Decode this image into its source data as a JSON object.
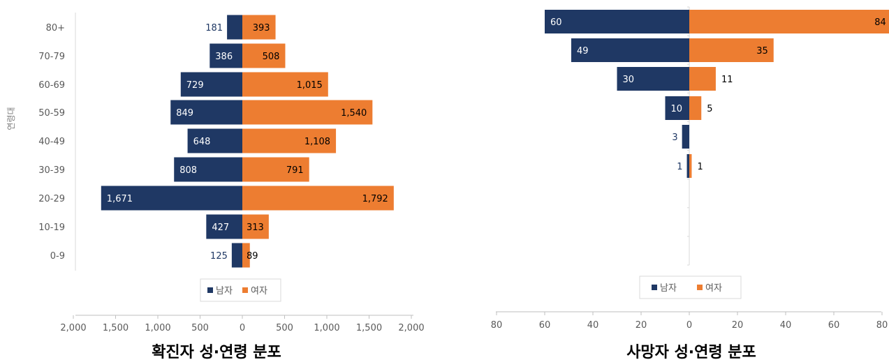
{
  "colors": {
    "male": "#1f3864",
    "female": "#ed7d31",
    "axis": "#bfbfbf",
    "tick_text": "#595959",
    "label_dark": "#1f3864"
  },
  "chart_data": [
    {
      "type": "bar",
      "orientation": "horizontal-diverging",
      "title": "확진자 성·연령 분포",
      "ylabel": "연령대",
      "categories": [
        "0-9",
        "10-19",
        "20-29",
        "30-39",
        "40-49",
        "50-59",
        "60-69",
        "70-79",
        "80+"
      ],
      "series": [
        {
          "name": "남자",
          "values": [
            125,
            427,
            1671,
            808,
            648,
            849,
            729,
            386,
            181
          ],
          "labels": [
            "125",
            "427",
            "1,671",
            "808",
            "648",
            "849",
            "729",
            "386",
            "181"
          ]
        },
        {
          "name": "여자",
          "values": [
            89,
            313,
            1792,
            791,
            1108,
            1540,
            1015,
            508,
            393
          ],
          "labels": [
            "89",
            "313",
            "1,792",
            "791",
            "1,108",
            "1,540",
            "1,015",
            "508",
            "393"
          ]
        }
      ],
      "xlim": [
        -2000,
        2000
      ],
      "xticks": [
        -2000,
        -1500,
        -1000,
        -500,
        0,
        500,
        1000,
        1500,
        2000
      ],
      "xtick_labels": [
        "2,000",
        "1,500",
        "1,000",
        "500",
        "0",
        "500",
        "1,000",
        "1,500",
        "2,000"
      ],
      "legend": {
        "items": [
          "남자",
          "여자"
        ],
        "position": "bottom"
      },
      "grid": false
    },
    {
      "type": "bar",
      "orientation": "horizontal-diverging",
      "title": "사망자 성·연령 분포",
      "ylabel": "",
      "categories": [
        "0-9",
        "10-19",
        "20-29",
        "30-39",
        "40-49",
        "50-59",
        "60-69",
        "70-79",
        "80+"
      ],
      "series": [
        {
          "name": "남자",
          "values": [
            0,
            0,
            0,
            1,
            3,
            10,
            30,
            49,
            60
          ],
          "labels": [
            "",
            "",
            "",
            "1",
            "3",
            "10",
            "30",
            "49",
            "60"
          ]
        },
        {
          "name": "여자",
          "values": [
            0,
            0,
            0,
            1,
            0,
            5,
            11,
            35,
            84
          ],
          "labels": [
            "",
            "",
            "",
            "1",
            "",
            "5",
            "11",
            "35",
            "84"
          ]
        }
      ],
      "xlim": [
        -80,
        80
      ],
      "xticks": [
        -80,
        -60,
        -40,
        -20,
        0,
        20,
        40,
        60,
        80
      ],
      "xtick_labels": [
        "80",
        "60",
        "40",
        "20",
        "0",
        "20",
        "40",
        "60",
        "80"
      ],
      "legend": {
        "items": [
          "남자",
          "여자"
        ],
        "position": "bottom"
      },
      "grid": false
    }
  ]
}
